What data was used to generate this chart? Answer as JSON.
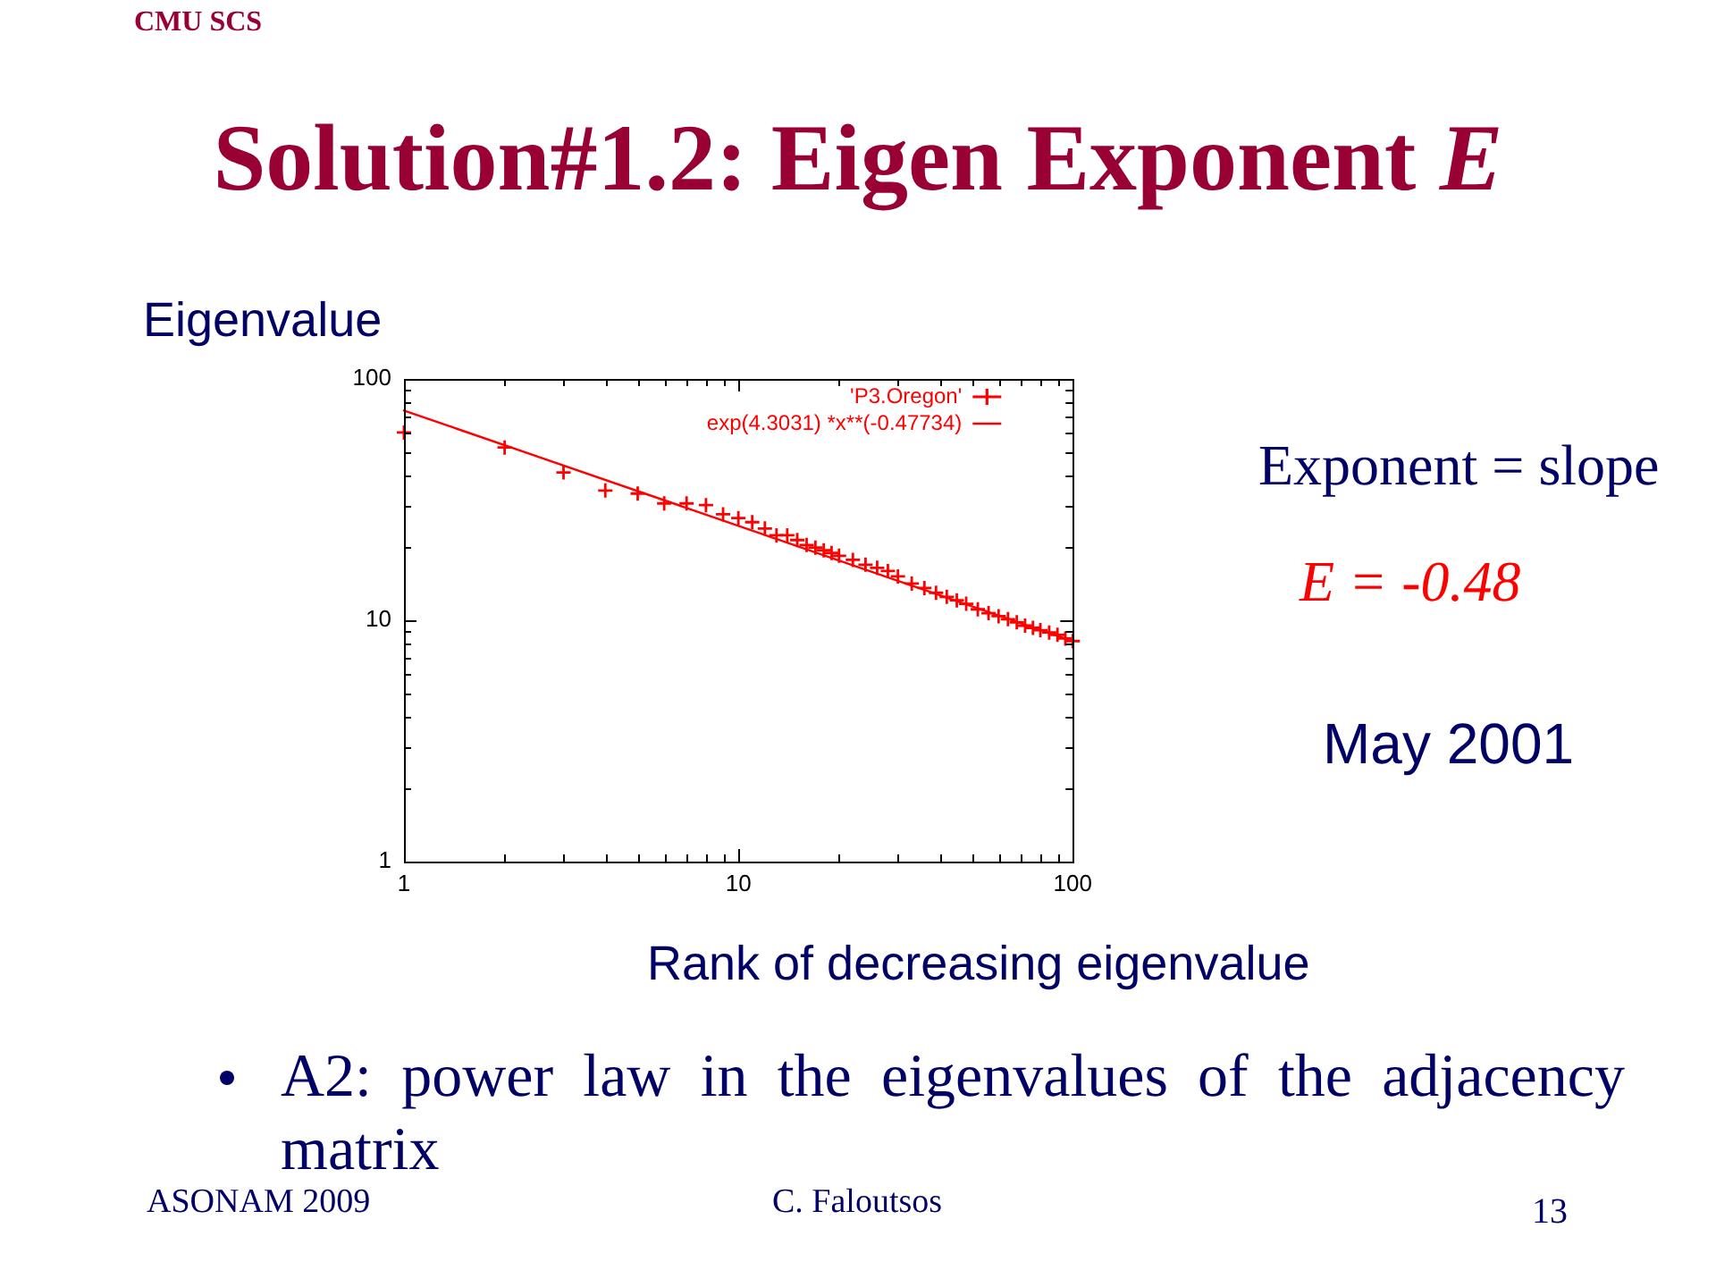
{
  "chart_data": {
    "type": "scatter",
    "title": "Solution#1.2: Eigen Exponent E",
    "xlabel": "Rank of decreasing eigenvalue",
    "ylabel": "Eigenvalue",
    "annotations": [
      "CMU SCS",
      "Exponent = slope",
      "E = -0.48",
      "May 2001",
      "A2: power law in the eigenvalues of the adjacency matrix",
      "ASONAM 2009",
      "C. Faloutsos",
      "13"
    ],
    "log": "xy",
    "grid": false,
    "legend": "top right",
    "xlim": [
      1,
      100
    ],
    "ylim": [
      1,
      100
    ],
    "xticks": [
      1,
      {
        "value": 2,
        "label": null
      },
      {
        "value": 3,
        "label": null
      },
      {
        "value": 4,
        "label": null
      },
      {
        "value": 5,
        "label": null
      },
      {
        "value": 6,
        "label": null
      },
      {
        "value": 7,
        "label": null
      },
      {
        "value": 8,
        "label": null
      },
      {
        "value": 9,
        "label": null
      },
      10,
      {
        "value": 20,
        "label": null
      },
      {
        "value": 30,
        "label": null
      },
      {
        "value": 40,
        "label": null
      },
      {
        "value": 50,
        "label": null
      },
      {
        "value": 60,
        "label": null
      },
      {
        "value": 70,
        "label": null
      },
      {
        "value": 80,
        "label": null
      },
      {
        "value": 90,
        "label": null
      },
      100
    ],
    "yticks": [
      1,
      {
        "value": 2,
        "label": null
      },
      {
        "value": 3,
        "label": null
      },
      {
        "value": 4,
        "label": null
      },
      {
        "value": 5,
        "label": null
      },
      {
        "value": 6,
        "label": null
      },
      {
        "value": 7,
        "label": null
      },
      {
        "value": 8,
        "label": null
      },
      {
        "value": 9,
        "label": null
      },
      10,
      {
        "value": 20,
        "label": null
      },
      {
        "value": 30,
        "label": null
      },
      {
        "value": 40,
        "label": null
      },
      {
        "value": 50,
        "label": null
      },
      {
        "value": 60,
        "label": null
      },
      {
        "value": 70,
        "label": null
      },
      {
        "value": 80,
        "label": null
      },
      {
        "value": 90,
        "label": null
      },
      100
    ],
    "series": [
      {
        "name": "'P3.Oregon'",
        "color": "#ff0000",
        "marker": "cross",
        "x": [
          1,
          2,
          3,
          4,
          5,
          6,
          7,
          8,
          9,
          10,
          11,
          12,
          13,
          14,
          15,
          16,
          17,
          18,
          19,
          20,
          22,
          24,
          26,
          28,
          30,
          33,
          36,
          39,
          42,
          45,
          48,
          52,
          56,
          60,
          64,
          68,
          72,
          76,
          80,
          85,
          90,
          95,
          100
        ],
        "values": [
          60,
          52,
          41,
          34.5,
          33.5,
          30.5,
          30.5,
          30,
          27.5,
          26.5,
          25.5,
          24,
          22.5,
          22.5,
          21.5,
          20.5,
          20,
          19.5,
          19,
          18.5,
          17.8,
          17,
          16.5,
          16,
          15.2,
          14.2,
          13.6,
          13,
          12.5,
          12.1,
          11.7,
          11.1,
          10.7,
          10.4,
          10.1,
          9.8,
          9.5,
          9.3,
          9.1,
          8.9,
          8.7,
          8.4,
          8.2
        ]
      },
      {
        "name": "exp(4.3031) *x**(-0.47734)",
        "type": "line",
        "color": "#ff0000",
        "marker": "none",
        "line_style": "solid",
        "x": [
          1,
          100
        ],
        "values": [
          74,
          8.2
        ]
      }
    ]
  }
}
